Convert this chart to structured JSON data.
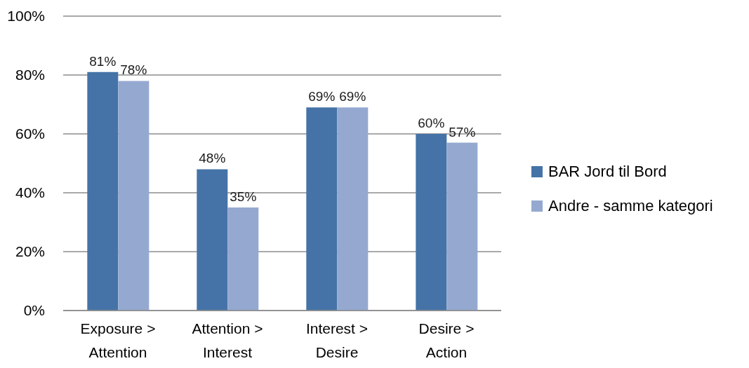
{
  "chart_data": {
    "type": "bar",
    "categories": [
      "Exposure > Attention",
      "Attention > Interest",
      "Interest > Desire",
      "Desire > Action"
    ],
    "series": [
      {
        "name": "BAR Jord til Bord",
        "color": "#4573a7",
        "values": [
          81,
          48,
          69,
          60
        ],
        "value_labels": [
          "81%",
          "48%",
          "69%",
          "60%"
        ]
      },
      {
        "name": "Andre - samme kategori",
        "color": "#95a9d0",
        "values": [
          78,
          35,
          69,
          57
        ],
        "value_labels": [
          "78%",
          "35%",
          "69%",
          "57%"
        ]
      }
    ],
    "ylim": [
      0,
      100
    ],
    "yticks": [
      {
        "value": 0,
        "label": "0%"
      },
      {
        "value": 20,
        "label": "20%"
      },
      {
        "value": 40,
        "label": "40%"
      },
      {
        "value": 60,
        "label": "60%"
      },
      {
        "value": 80,
        "label": "80%"
      },
      {
        "value": 100,
        "label": "100%"
      }
    ],
    "grid": "y",
    "legend": "right"
  }
}
